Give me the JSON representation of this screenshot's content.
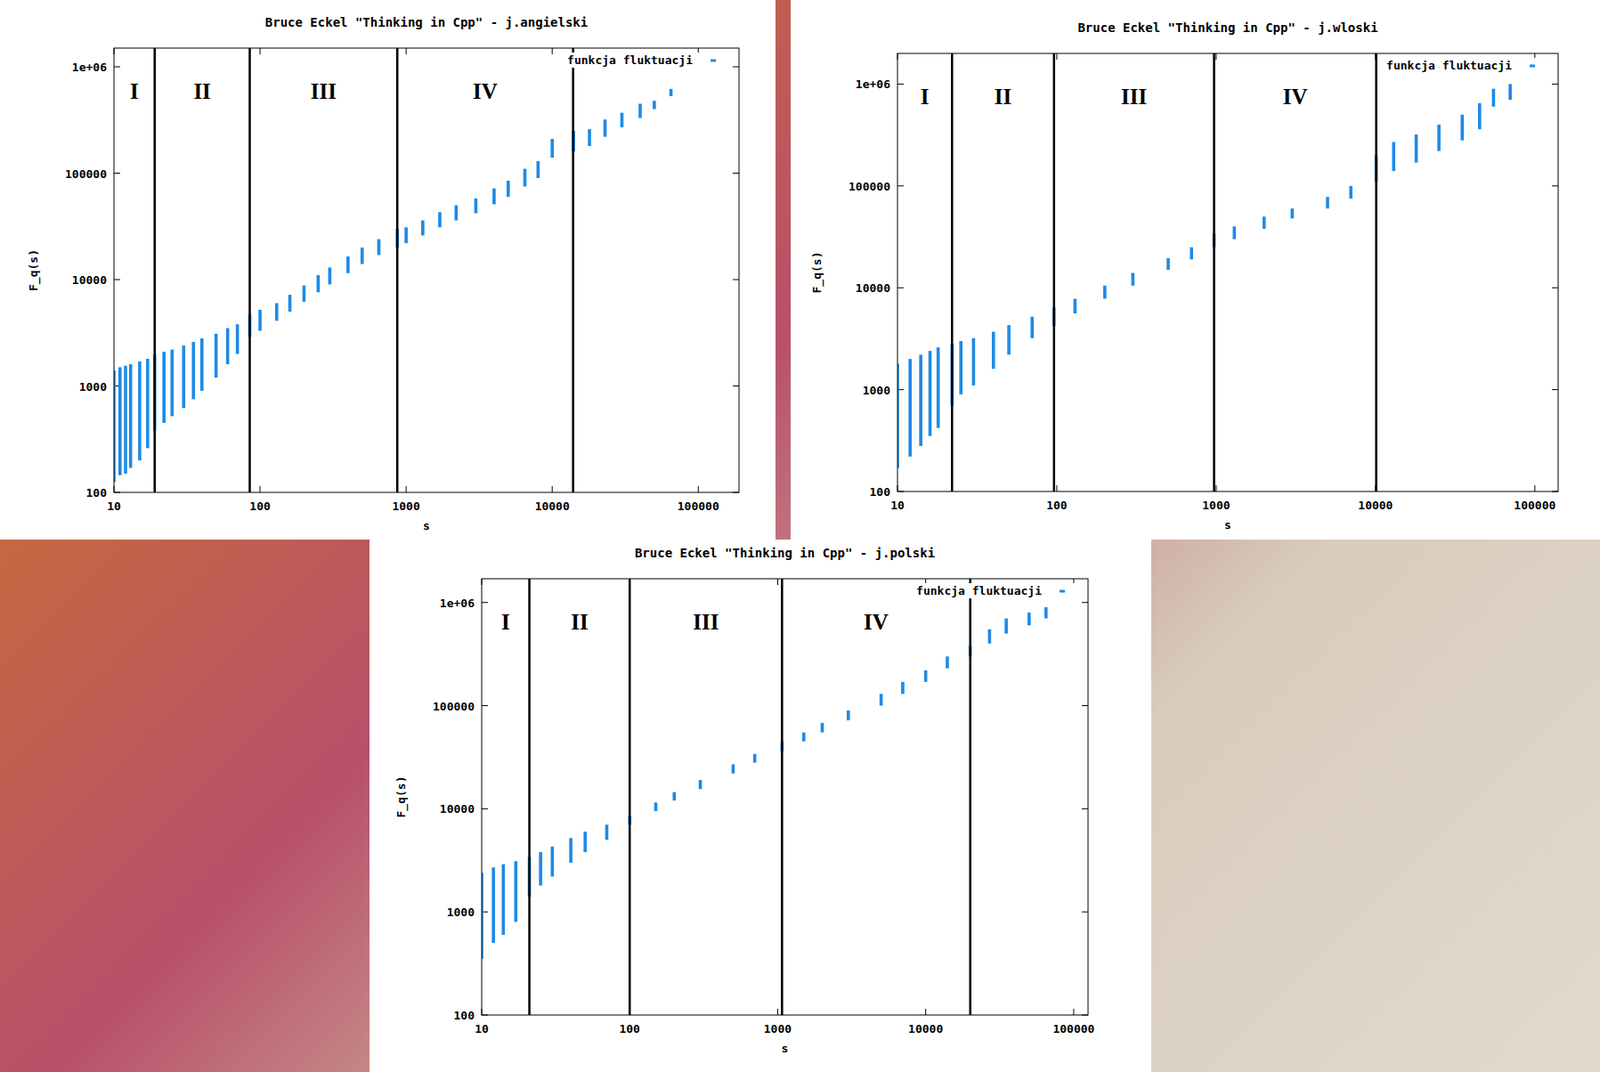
{
  "chart_data": [
    {
      "type": "range_bar",
      "title": "Bruce Eckel \"Thinking in Cpp\" - j.angielski",
      "x_label": "s",
      "y_label": "F_q(s)",
      "log": true,
      "legend": "top-right",
      "xlim": [
        10,
        190000
      ],
      "ylim": [
        100,
        1500000
      ],
      "xticks": [
        10,
        100,
        1000,
        10000,
        100000
      ],
      "yticks": [
        100,
        1000,
        10000,
        100000,
        {
          "value": 1000000,
          "label": "1e+06"
        }
      ],
      "regions": {
        "labels": [
          "I",
          "II",
          "III",
          "IV"
        ],
        "boundaries": [
          19,
          85,
          870,
          13900
        ]
      },
      "x": [
        10,
        11,
        12,
        13,
        15,
        17,
        19,
        22,
        25,
        30,
        35,
        40,
        50,
        60,
        70,
        85,
        100,
        130,
        160,
        200,
        250,
        300,
        400,
        500,
        650,
        870,
        1000,
        1300,
        1700,
        2200,
        3000,
        4000,
        5000,
        6500,
        8000,
        10000,
        14000,
        18000,
        23000,
        30000,
        40000,
        50000,
        65000
      ],
      "series": [
        {
          "name": "funkcja fluktuacji",
          "color": "#1e8ae6",
          "low": [
            125,
            145,
            150,
            170,
            200,
            260,
            380,
            450,
            520,
            620,
            750,
            900,
            1200,
            1600,
            2000,
            2900,
            3300,
            4100,
            5000,
            6200,
            7600,
            9000,
            11500,
            14000,
            17000,
            20000,
            22000,
            26000,
            31000,
            36000,
            42000,
            51000,
            60000,
            75000,
            90000,
            140000,
            160000,
            180000,
            220000,
            270000,
            330000,
            400000,
            530000
          ],
          "high": [
            1400,
            1500,
            1550,
            1600,
            1700,
            1800,
            2000,
            2100,
            2200,
            2400,
            2600,
            2800,
            3100,
            3500,
            3800,
            4700,
            5200,
            6000,
            7200,
            8800,
            11000,
            13000,
            16500,
            20000,
            24000,
            30000,
            31000,
            36000,
            43000,
            50000,
            58000,
            72000,
            85000,
            110000,
            130000,
            210000,
            250000,
            260000,
            320000,
            370000,
            450000,
            480000,
            620000
          ]
        }
      ]
    },
    {
      "type": "range_bar",
      "title": "Bruce Eckel \"Thinking in Cpp\" - j.wloski",
      "x_label": "s",
      "y_label": "F_q(s)",
      "log": true,
      "legend": "top-right",
      "xlim": [
        10,
        140000
      ],
      "ylim": [
        100,
        2000000
      ],
      "xticks": [
        10,
        100,
        1000,
        10000,
        100000
      ],
      "yticks": [
        100,
        1000,
        10000,
        100000,
        {
          "value": 1000000,
          "label": "1e+06"
        }
      ],
      "regions": {
        "labels": [
          "I",
          "II",
          "III",
          "IV"
        ],
        "boundaries": [
          22,
          96,
          970,
          10100
        ]
      },
      "x": [
        10,
        12,
        14,
        16,
        18,
        22,
        25,
        30,
        40,
        50,
        70,
        96,
        130,
        200,
        300,
        500,
        700,
        970,
        1300,
        2000,
        3000,
        5000,
        7000,
        10100,
        13000,
        18000,
        25000,
        35000,
        45000,
        55000,
        70000
      ],
      "series": [
        {
          "name": "funkcja fluktuacji",
          "color": "#1e8ae6",
          "low": [
            170,
            220,
            280,
            350,
            420,
            700,
            900,
            1100,
            1600,
            2200,
            3200,
            4200,
            5600,
            7800,
            10500,
            15000,
            19000,
            25000,
            30000,
            38000,
            48000,
            60000,
            75000,
            110000,
            140000,
            170000,
            220000,
            280000,
            360000,
            600000,
            700000
          ],
          "high": [
            1800,
            2000,
            2200,
            2400,
            2600,
            2800,
            3000,
            3200,
            3700,
            4300,
            5200,
            6400,
            7800,
            10500,
            14000,
            19500,
            25000,
            34000,
            40000,
            50000,
            60000,
            78000,
            100000,
            200000,
            270000,
            320000,
            400000,
            500000,
            650000,
            900000,
            1000000
          ]
        }
      ]
    },
    {
      "type": "range_bar",
      "title": "Bruce Eckel \"Thinking in Cpp\" - j.polski",
      "x_label": "s",
      "y_label": "F_q(s)",
      "log": true,
      "legend": "top-right",
      "xlim": [
        10,
        125000
      ],
      "ylim": [
        100,
        1700000
      ],
      "xticks": [
        10,
        100,
        1000,
        10000,
        100000
      ],
      "yticks": [
        100,
        1000,
        10000,
        100000,
        {
          "value": 1000000,
          "label": "1e+06"
        }
      ],
      "regions": {
        "labels": [
          "I",
          "II",
          "III",
          "IV"
        ],
        "boundaries": [
          21,
          100,
          1070,
          20000
        ]
      },
      "x": [
        10,
        12,
        14,
        17,
        21,
        25,
        30,
        40,
        50,
        70,
        100,
        150,
        200,
        300,
        500,
        700,
        1070,
        1500,
        2000,
        3000,
        5000,
        7000,
        10000,
        14000,
        20000,
        27000,
        35000,
        50000,
        65000
      ],
      "series": [
        {
          "name": "funkcja fluktuacji",
          "color": "#1e8ae6",
          "low": [
            350,
            500,
            600,
            800,
            1400,
            1800,
            2200,
            3000,
            3800,
            5000,
            7000,
            9500,
            12000,
            15500,
            22000,
            28000,
            36000,
            45000,
            55000,
            72000,
            100000,
            130000,
            170000,
            230000,
            300000,
            400000,
            500000,
            600000,
            700000
          ],
          "high": [
            2400,
            2700,
            2900,
            3100,
            3400,
            3800,
            4300,
            5200,
            6000,
            7000,
            8500,
            11500,
            14500,
            19000,
            27000,
            34000,
            45000,
            55000,
            68000,
            90000,
            130000,
            170000,
            220000,
            300000,
            380000,
            550000,
            700000,
            800000,
            900000
          ]
        }
      ]
    }
  ]
}
